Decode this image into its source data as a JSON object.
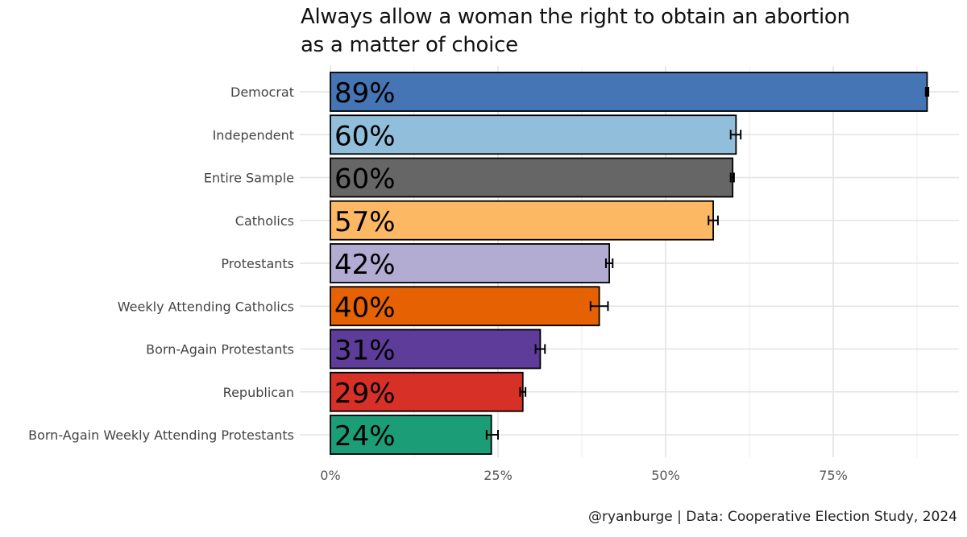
{
  "chart_data": {
    "type": "bar",
    "orientation": "horizontal",
    "title_lines": [
      "Always allow a woman the right to obtain an abortion",
      "as a matter of choice"
    ],
    "caption": "@ryanburge | Data: Cooperative Election Study, 2024",
    "xlim": [
      0,
      0.93
    ],
    "xticks": [
      0,
      0.25,
      0.5,
      0.75
    ],
    "xtick_labels": [
      "0%",
      "25%",
      "50%",
      "75%"
    ],
    "grid": true,
    "bars": [
      {
        "category": "Democrat",
        "value": 0.89,
        "label": "89%",
        "err_low": 0.888,
        "err_high": 0.892,
        "color": "#4575b4"
      },
      {
        "category": "Independent",
        "value": 0.605,
        "label": "60%",
        "err_low": 0.597,
        "err_high": 0.612,
        "color": "#91bfdb"
      },
      {
        "category": "Entire Sample",
        "value": 0.6,
        "label": "60%",
        "err_low": 0.597,
        "err_high": 0.602,
        "color": "#666666"
      },
      {
        "category": "Catholics",
        "value": 0.571,
        "label": "57%",
        "err_low": 0.564,
        "err_high": 0.578,
        "color": "#fdb863"
      },
      {
        "category": "Protestants",
        "value": 0.416,
        "label": "42%",
        "err_low": 0.411,
        "err_high": 0.421,
        "color": "#b2abd2"
      },
      {
        "category": "Weekly Attending Catholics",
        "value": 0.401,
        "label": "40%",
        "err_low": 0.388,
        "err_high": 0.414,
        "color": "#e66101"
      },
      {
        "category": "Born-Again Protestants",
        "value": 0.313,
        "label": "31%",
        "err_low": 0.306,
        "err_high": 0.32,
        "color": "#5e3c99"
      },
      {
        "category": "Republican",
        "value": 0.287,
        "label": "29%",
        "err_low": 0.283,
        "err_high": 0.291,
        "color": "#d73027"
      },
      {
        "category": "Born-Again Weekly Attending Protestants",
        "value": 0.24,
        "label": "24%",
        "err_low": 0.233,
        "err_high": 0.25,
        "color": "#1b9e77"
      }
    ]
  }
}
